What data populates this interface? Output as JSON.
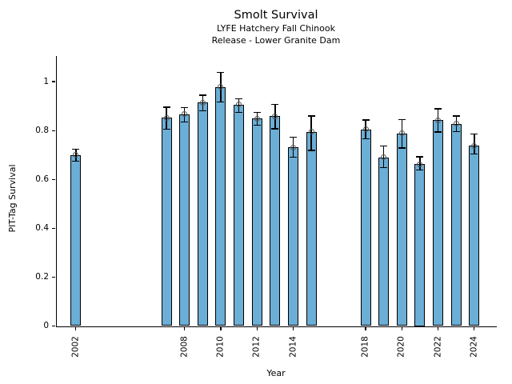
{
  "chart_data": {
    "type": "bar",
    "title": "Smolt Survival",
    "subtitle_line1": "LYFE Hatchery Fall Chinook",
    "subtitle_line2": "Release - Lower Granite Dam",
    "xlabel": "Year",
    "ylabel": "PIT-Tag Survival",
    "xlim": [
      2000.9,
      2025.2
    ],
    "ylim": [
      0,
      1.105
    ],
    "yticks": [
      0,
      0.2,
      0.4,
      0.6,
      0.8,
      1
    ],
    "ytick_labels": [
      "0",
      "0.2",
      "0.4",
      "0.6",
      "0.8",
      "1"
    ],
    "xticks": [
      2002,
      2008,
      2010,
      2012,
      2014,
      2018,
      2020,
      2022,
      2024
    ],
    "grid": false,
    "legend": "none",
    "bar_color": "#6baed6",
    "bar_edge_color": "#000000",
    "error_bar_color": "#000000",
    "marker_color": "#555555",
    "bars": [
      {
        "year": 2002,
        "value": 0.7,
        "err_lo": 0.674,
        "err_hi": 0.723
      },
      {
        "year": 2007,
        "value": 0.852,
        "err_lo": 0.805,
        "err_hi": 0.896
      },
      {
        "year": 2008,
        "value": 0.866,
        "err_lo": 0.835,
        "err_hi": 0.894
      },
      {
        "year": 2009,
        "value": 0.915,
        "err_lo": 0.881,
        "err_hi": 0.944
      },
      {
        "year": 2010,
        "value": 0.978,
        "err_lo": 0.916,
        "err_hi": 1.037
      },
      {
        "year": 2011,
        "value": 0.906,
        "err_lo": 0.875,
        "err_hi": 0.93
      },
      {
        "year": 2012,
        "value": 0.849,
        "err_lo": 0.821,
        "err_hi": 0.875
      },
      {
        "year": 2013,
        "value": 0.858,
        "err_lo": 0.807,
        "err_hi": 0.906
      },
      {
        "year": 2014,
        "value": 0.731,
        "err_lo": 0.69,
        "err_hi": 0.772
      },
      {
        "year": 2015,
        "value": 0.794,
        "err_lo": 0.719,
        "err_hi": 0.859
      },
      {
        "year": 2018,
        "value": 0.805,
        "err_lo": 0.767,
        "err_hi": 0.843
      },
      {
        "year": 2019,
        "value": 0.69,
        "err_lo": 0.649,
        "err_hi": 0.736
      },
      {
        "year": 2020,
        "value": 0.788,
        "err_lo": 0.728,
        "err_hi": 0.845
      },
      {
        "year": 2021,
        "value": 0.663,
        "err_lo": 0.638,
        "err_hi": 0.692
      },
      {
        "year": 2022,
        "value": 0.843,
        "err_lo": 0.794,
        "err_hi": 0.889
      },
      {
        "year": 2023,
        "value": 0.828,
        "err_lo": 0.796,
        "err_hi": 0.859
      },
      {
        "year": 2024,
        "value": 0.737,
        "err_lo": 0.703,
        "err_hi": 0.785
      }
    ]
  }
}
